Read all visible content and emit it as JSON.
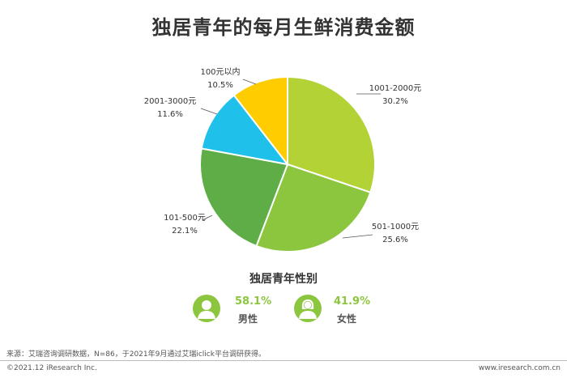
{
  "title": "独居青年的每月生鲜消费金额",
  "chart_data": {
    "type": "pie",
    "start_angle_deg": 0,
    "direction": "clockwise",
    "slices": [
      {
        "label": "1001-2000元",
        "value": 30.2,
        "display": "30.2%",
        "color": "#b2d235"
      },
      {
        "label": "501-1000元",
        "value": 25.6,
        "display": "25.6%",
        "color": "#8cc63f"
      },
      {
        "label": "101-500元",
        "value": 22.1,
        "display": "22.1%",
        "color": "#5fad47"
      },
      {
        "label": "2001-3000元",
        "value": 11.6,
        "display": "11.6%",
        "color": "#1fc1ea"
      },
      {
        "label": "100元以内",
        "value": 10.5,
        "display": "10.5%",
        "color": "#ffcc00"
      }
    ]
  },
  "gender": {
    "title": "独居青年性别",
    "male": {
      "percent": "58.1%",
      "label": "男性"
    },
    "female": {
      "percent": "41.9%",
      "label": "女性"
    },
    "icon_color": "#8cc63f"
  },
  "footer": {
    "source": "来源：艾瑞咨询调研数据，N=86，于2021年9月通过艾瑞iclick平台调研获得。",
    "copyright": "©2021.12 iResearch Inc.",
    "website": "www.iresearch.com.cn"
  }
}
